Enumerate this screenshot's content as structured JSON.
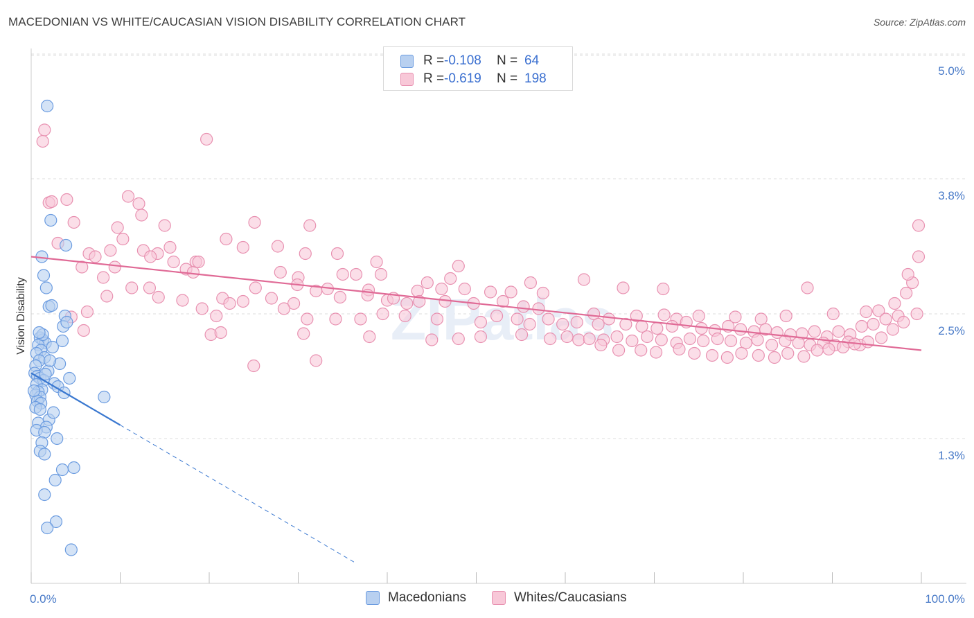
{
  "header": {
    "title": "MACEDONIAN VS WHITE/CAUCASIAN VISION DISABILITY CORRELATION CHART",
    "source": "Source: ZipAtlas.com"
  },
  "legend": {
    "rows": [
      {
        "r_label": "R =",
        "r_value": "-0.108",
        "n_label": "N =",
        "n_value": "64"
      },
      {
        "r_label": "R =",
        "r_value": "-0.619",
        "n_label": "N =",
        "n_value": "198"
      }
    ]
  },
  "bottom_legend": {
    "items": [
      "Macedonians",
      "Whites/Caucasians"
    ]
  },
  "colors": {
    "macedonian_fill": "#b8d0f0",
    "macedonian_stroke": "#6a9be0",
    "macedonian_line": "#3a78d0",
    "white_fill": "#f8c8d8",
    "white_stroke": "#e890b0",
    "white_line": "#e06a96",
    "tick_text": "#4a7bc8",
    "grid": "#dddddd"
  },
  "chart_data": {
    "type": "scatter",
    "title": "MACEDONIAN VS WHITE/CAUCASIAN VISION DISABILITY CORRELATION CHART",
    "xlabel": "",
    "ylabel": "Vision Disability",
    "xlim": [
      0,
      100
    ],
    "ylim": [
      0.0,
      5.2
    ],
    "x_tick_labels": [
      "0.0%",
      "100.0%"
    ],
    "y_ticks": [
      {
        "value": 1.3,
        "label": "1.3%"
      },
      {
        "value": 2.5,
        "label": "2.5%"
      },
      {
        "value": 3.8,
        "label": "3.8%"
      },
      {
        "value": 5.0,
        "label": "5.0%"
      }
    ],
    "grid": "horizontal dashed",
    "watermark": "ZIPatlas",
    "series": [
      {
        "name": "Macedonians",
        "stats": {
          "R": -0.108,
          "N": 64
        },
        "trend": {
          "x0": 0,
          "y0": 1.93,
          "x1": 10,
          "y1": 1.43,
          "dash_to_x": 36.5,
          "dash_to_y": 0.1
        },
        "points": [
          [
            1.8,
            4.5
          ],
          [
            2.2,
            3.4
          ],
          [
            3.9,
            3.16
          ],
          [
            1.2,
            3.05
          ],
          [
            1.4,
            2.87
          ],
          [
            1.7,
            2.75
          ],
          [
            2.0,
            2.57
          ],
          [
            2.3,
            2.58
          ],
          [
            3.8,
            2.48
          ],
          [
            3.6,
            2.38
          ],
          [
            4.0,
            2.42
          ],
          [
            1.0,
            2.27
          ],
          [
            1.3,
            2.25
          ],
          [
            1.6,
            2.22
          ],
          [
            3.5,
            2.24
          ],
          [
            2.4,
            2.18
          ],
          [
            0.8,
            2.2
          ],
          [
            1.1,
            2.15
          ],
          [
            0.6,
            2.12
          ],
          [
            1.5,
            2.08
          ],
          [
            0.9,
            2.05
          ],
          [
            0.5,
            2.0
          ],
          [
            3.2,
            2.02
          ],
          [
            1.9,
            1.95
          ],
          [
            0.4,
            1.93
          ],
          [
            0.7,
            1.9
          ],
          [
            1.0,
            1.88
          ],
          [
            1.4,
            1.86
          ],
          [
            4.3,
            1.88
          ],
          [
            2.6,
            1.83
          ],
          [
            0.6,
            1.82
          ],
          [
            3.0,
            1.8
          ],
          [
            1.2,
            1.77
          ],
          [
            0.8,
            1.75
          ],
          [
            3.7,
            1.74
          ],
          [
            0.5,
            1.72
          ],
          [
            1.0,
            1.7
          ],
          [
            0.7,
            1.66
          ],
          [
            1.1,
            1.64
          ],
          [
            0.5,
            1.6
          ],
          [
            1.0,
            1.58
          ],
          [
            8.2,
            1.7
          ],
          [
            2.0,
            1.48
          ],
          [
            0.8,
            1.45
          ],
          [
            1.7,
            1.41
          ],
          [
            0.6,
            1.38
          ],
          [
            1.5,
            1.36
          ],
          [
            2.9,
            1.3
          ],
          [
            1.2,
            1.26
          ],
          [
            1.0,
            1.18
          ],
          [
            1.5,
            1.15
          ],
          [
            3.5,
            1.0
          ],
          [
            4.8,
            1.02
          ],
          [
            2.7,
            0.9
          ],
          [
            1.5,
            0.76
          ],
          [
            2.8,
            0.5
          ],
          [
            1.8,
            0.44
          ],
          [
            4.5,
            0.23
          ],
          [
            1.3,
            2.3
          ],
          [
            2.1,
            2.05
          ],
          [
            0.9,
            2.32
          ],
          [
            2.5,
            1.55
          ],
          [
            1.6,
            1.92
          ],
          [
            0.3,
            1.76
          ]
        ]
      },
      {
        "name": "Whites/Caucasians",
        "stats": {
          "R": -0.619,
          "N": 198
        },
        "trend": {
          "x0": 0,
          "y0": 3.05,
          "x1": 100,
          "y1": 2.15
        },
        "points": [
          [
            1.3,
            4.16
          ],
          [
            1.5,
            4.27
          ],
          [
            19.7,
            4.18
          ],
          [
            2.0,
            3.57
          ],
          [
            2.3,
            3.58
          ],
          [
            4.0,
            3.6
          ],
          [
            10.9,
            3.63
          ],
          [
            12.1,
            3.56
          ],
          [
            12.4,
            3.45
          ],
          [
            4.8,
            3.38
          ],
          [
            15.0,
            3.35
          ],
          [
            25.1,
            3.38
          ],
          [
            31.3,
            3.35
          ],
          [
            9.7,
            3.33
          ],
          [
            10.3,
            3.22
          ],
          [
            21.9,
            3.22
          ],
          [
            3.0,
            3.18
          ],
          [
            8.9,
            3.11
          ],
          [
            12.6,
            3.11
          ],
          [
            14.2,
            3.08
          ],
          [
            15.6,
            3.14
          ],
          [
            23.8,
            3.14
          ],
          [
            27.7,
            3.15
          ],
          [
            30.8,
            3.08
          ],
          [
            34.4,
            3.08
          ],
          [
            6.5,
            3.08
          ],
          [
            7.2,
            3.05
          ],
          [
            13.4,
            3.05
          ],
          [
            16.0,
            3.0
          ],
          [
            18.5,
            3.0
          ],
          [
            18.8,
            3.0
          ],
          [
            17.4,
            2.93
          ],
          [
            18.2,
            2.9
          ],
          [
            9.4,
            2.95
          ],
          [
            5.7,
            2.95
          ],
          [
            38.8,
            3.0
          ],
          [
            48.0,
            2.96
          ],
          [
            28.0,
            2.9
          ],
          [
            30.0,
            2.85
          ],
          [
            35.0,
            2.88
          ],
          [
            36.5,
            2.88
          ],
          [
            39.3,
            2.88
          ],
          [
            8.1,
            2.85
          ],
          [
            44.5,
            2.8
          ],
          [
            47.1,
            2.84
          ],
          [
            56.1,
            2.8
          ],
          [
            62.1,
            2.83
          ],
          [
            29.9,
            2.78
          ],
          [
            25.2,
            2.75
          ],
          [
            33.3,
            2.74
          ],
          [
            11.3,
            2.75
          ],
          [
            13.3,
            2.75
          ],
          [
            32.0,
            2.72
          ],
          [
            37.9,
            2.73
          ],
          [
            43.4,
            2.72
          ],
          [
            46.1,
            2.74
          ],
          [
            48.7,
            2.74
          ],
          [
            51.6,
            2.71
          ],
          [
            53.9,
            2.71
          ],
          [
            57.5,
            2.7
          ],
          [
            66.5,
            2.75
          ],
          [
            71.0,
            2.74
          ],
          [
            87.2,
            2.75
          ],
          [
            8.5,
            2.67
          ],
          [
            14.3,
            2.66
          ],
          [
            21.5,
            2.65
          ],
          [
            22.3,
            2.6
          ],
          [
            23.8,
            2.62
          ],
          [
            27.0,
            2.65
          ],
          [
            29.5,
            2.6
          ],
          [
            34.7,
            2.66
          ],
          [
            37.8,
            2.68
          ],
          [
            40.0,
            2.63
          ],
          [
            40.7,
            2.65
          ],
          [
            42.2,
            2.6
          ],
          [
            43.6,
            2.62
          ],
          [
            46.5,
            2.62
          ],
          [
            49.7,
            2.6
          ],
          [
            53.0,
            2.62
          ],
          [
            55.3,
            2.57
          ],
          [
            57.0,
            2.55
          ],
          [
            63.2,
            2.5
          ],
          [
            68.0,
            2.48
          ],
          [
            71.1,
            2.49
          ],
          [
            72.5,
            2.45
          ],
          [
            75.0,
            2.48
          ],
          [
            79.1,
            2.47
          ],
          [
            82.0,
            2.45
          ],
          [
            84.8,
            2.48
          ],
          [
            90.1,
            2.5
          ],
          [
            93.8,
            2.52
          ],
          [
            95.2,
            2.53
          ],
          [
            97.0,
            2.6
          ],
          [
            98.3,
            2.7
          ],
          [
            99.0,
            2.8
          ],
          [
            98.5,
            2.88
          ],
          [
            101.0,
            3.05
          ],
          [
            100.5,
            3.35
          ],
          [
            4.5,
            2.47
          ],
          [
            6.3,
            2.52
          ],
          [
            17.0,
            2.63
          ],
          [
            19.2,
            2.55
          ],
          [
            20.8,
            2.48
          ],
          [
            28.4,
            2.55
          ],
          [
            31.0,
            2.45
          ],
          [
            34.2,
            2.45
          ],
          [
            37.0,
            2.45
          ],
          [
            39.5,
            2.5
          ],
          [
            42.0,
            2.48
          ],
          [
            45.6,
            2.45
          ],
          [
            50.5,
            2.42
          ],
          [
            52.3,
            2.48
          ],
          [
            54.6,
            2.45
          ],
          [
            56.0,
            2.4
          ],
          [
            58.1,
            2.45
          ],
          [
            59.7,
            2.4
          ],
          [
            61.3,
            2.42
          ],
          [
            63.7,
            2.4
          ],
          [
            64.9,
            2.45
          ],
          [
            66.8,
            2.4
          ],
          [
            68.6,
            2.38
          ],
          [
            70.3,
            2.36
          ],
          [
            72.0,
            2.38
          ],
          [
            73.6,
            2.42
          ],
          [
            75.3,
            2.36
          ],
          [
            76.8,
            2.34
          ],
          [
            78.3,
            2.38
          ],
          [
            79.7,
            2.35
          ],
          [
            81.2,
            2.33
          ],
          [
            82.5,
            2.35
          ],
          [
            83.8,
            2.32
          ],
          [
            85.3,
            2.3
          ],
          [
            86.6,
            2.31
          ],
          [
            88.0,
            2.33
          ],
          [
            89.4,
            2.28
          ],
          [
            90.7,
            2.33
          ],
          [
            92.0,
            2.3
          ],
          [
            93.3,
            2.38
          ],
          [
            94.6,
            2.4
          ],
          [
            96.0,
            2.45
          ],
          [
            97.4,
            2.48
          ],
          [
            5.9,
            2.34
          ],
          [
            20.2,
            2.3
          ],
          [
            21.3,
            2.32
          ],
          [
            30.6,
            2.31
          ],
          [
            38.0,
            2.28
          ],
          [
            45.0,
            2.25
          ],
          [
            48.0,
            2.26
          ],
          [
            50.5,
            2.28
          ],
          [
            55.1,
            2.3
          ],
          [
            58.3,
            2.26
          ],
          [
            60.2,
            2.28
          ],
          [
            61.5,
            2.25
          ],
          [
            62.7,
            2.26
          ],
          [
            64.3,
            2.25
          ],
          [
            65.8,
            2.28
          ],
          [
            67.5,
            2.24
          ],
          [
            69.2,
            2.28
          ],
          [
            70.8,
            2.25
          ],
          [
            72.5,
            2.22
          ],
          [
            74.0,
            2.26
          ],
          [
            75.5,
            2.24
          ],
          [
            77.1,
            2.26
          ],
          [
            78.6,
            2.24
          ],
          [
            80.3,
            2.22
          ],
          [
            81.6,
            2.25
          ],
          [
            83.2,
            2.2
          ],
          [
            84.7,
            2.24
          ],
          [
            86.2,
            2.22
          ],
          [
            87.5,
            2.2
          ],
          [
            89.0,
            2.22
          ],
          [
            90.3,
            2.2
          ],
          [
            91.8,
            2.23
          ],
          [
            93.1,
            2.2
          ],
          [
            64.0,
            2.2
          ],
          [
            66.0,
            2.15
          ],
          [
            68.5,
            2.15
          ],
          [
            70.2,
            2.13
          ],
          [
            72.8,
            2.16
          ],
          [
            74.5,
            2.12
          ],
          [
            76.5,
            2.1
          ],
          [
            78.2,
            2.08
          ],
          [
            79.8,
            2.12
          ],
          [
            81.7,
            2.1
          ],
          [
            83.5,
            2.08
          ],
          [
            85.0,
            2.12
          ],
          [
            86.8,
            2.09
          ],
          [
            88.3,
            2.15
          ],
          [
            89.6,
            2.16
          ],
          [
            91.2,
            2.18
          ],
          [
            92.5,
            2.21
          ],
          [
            94.0,
            2.23
          ],
          [
            95.5,
            2.27
          ],
          [
            96.8,
            2.35
          ],
          [
            98.0,
            2.42
          ],
          [
            99.5,
            2.5
          ],
          [
            32.0,
            2.05
          ],
          [
            25.0,
            2.0
          ]
        ]
      }
    ]
  }
}
